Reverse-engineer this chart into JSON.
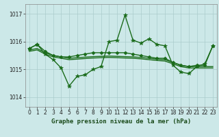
{
  "title": "Graphe pression niveau de la mer (hPa)",
  "xlabel_ticks": [
    0,
    1,
    2,
    3,
    4,
    5,
    6,
    7,
    8,
    9,
    10,
    11,
    12,
    13,
    14,
    15,
    16,
    17,
    18,
    19,
    20,
    21,
    22,
    23
  ],
  "yticks": [
    1014,
    1015,
    1016,
    1017
  ],
  "ylim": [
    1013.65,
    1017.35
  ],
  "xlim": [
    -0.5,
    23.5
  ],
  "bg_color": "#cce8e8",
  "grid_color": "#aacccc",
  "line_color": "#1a6b1a",
  "series": [
    {
      "x": [
        0,
        1,
        2,
        3,
        4,
        5,
        6,
        7,
        8,
        9,
        10,
        11,
        12,
        13,
        14,
        15,
        16,
        17,
        18,
        19,
        20,
        21,
        22,
        23
      ],
      "y": [
        1015.75,
        1015.9,
        1015.55,
        1015.35,
        1015.05,
        1014.4,
        1014.75,
        1014.8,
        1015.0,
        1015.1,
        1016.0,
        1016.05,
        1016.95,
        1016.05,
        1015.95,
        1016.1,
        1015.9,
        1015.85,
        1015.15,
        1014.9,
        1014.85,
        1015.1,
        1015.2,
        1015.85
      ],
      "marker": "*",
      "markersize": 4,
      "linewidth": 1.0
    },
    {
      "x": [
        0,
        1,
        2,
        3,
        4,
        5,
        6,
        7,
        8,
        9,
        10,
        11,
        12,
        13,
        14,
        15,
        16,
        17,
        18,
        19,
        20,
        21,
        22,
        23
      ],
      "y": [
        1015.75,
        1015.9,
        1015.65,
        1015.5,
        1015.45,
        1015.45,
        1015.5,
        1015.55,
        1015.6,
        1015.6,
        1015.6,
        1015.6,
        1015.6,
        1015.55,
        1015.5,
        1015.45,
        1015.4,
        1015.4,
        1015.25,
        1015.15,
        1015.1,
        1015.15,
        1015.15,
        1015.85
      ],
      "marker": "D",
      "markersize": 2.5,
      "linewidth": 1.0
    },
    {
      "x": [
        0,
        1,
        2,
        3,
        4,
        5,
        6,
        7,
        8,
        9,
        10,
        11,
        12,
        13,
        14,
        15,
        16,
        17,
        18,
        19,
        20,
        21,
        22,
        23
      ],
      "y": [
        1015.7,
        1015.75,
        1015.6,
        1015.5,
        1015.45,
        1015.4,
        1015.42,
        1015.44,
        1015.46,
        1015.47,
        1015.48,
        1015.47,
        1015.46,
        1015.45,
        1015.43,
        1015.4,
        1015.37,
        1015.35,
        1015.25,
        1015.15,
        1015.1,
        1015.1,
        1015.1,
        1015.1
      ],
      "marker": null,
      "markersize": 0,
      "linewidth": 1.0
    },
    {
      "x": [
        0,
        1,
        2,
        3,
        4,
        5,
        6,
        7,
        8,
        9,
        10,
        11,
        12,
        13,
        14,
        15,
        16,
        17,
        18,
        19,
        20,
        21,
        22,
        23
      ],
      "y": [
        1015.65,
        1015.7,
        1015.55,
        1015.45,
        1015.4,
        1015.35,
        1015.37,
        1015.39,
        1015.41,
        1015.42,
        1015.43,
        1015.42,
        1015.41,
        1015.4,
        1015.38,
        1015.35,
        1015.32,
        1015.3,
        1015.2,
        1015.1,
        1015.05,
        1015.05,
        1015.05,
        1015.05
      ],
      "marker": null,
      "markersize": 0,
      "linewidth": 1.0
    }
  ],
  "label_fontsize": 6.5,
  "title_fontsize": 6.5,
  "tick_fontsize": 5.5
}
